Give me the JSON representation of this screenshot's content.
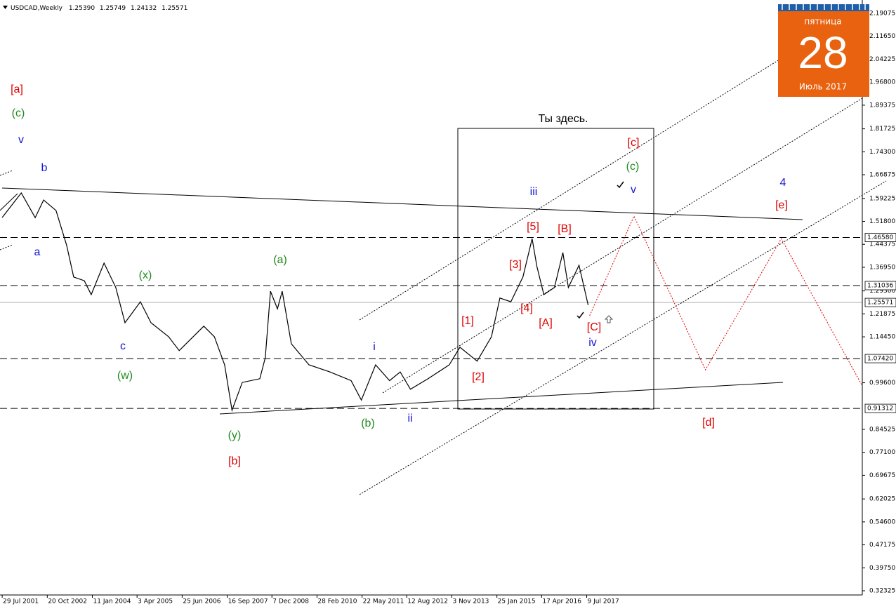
{
  "chart_data": {
    "type": "line",
    "title": "USDCAD,Weekly",
    "header_values": [
      "1.25390",
      "1.25749",
      "1.24132",
      "1.25571"
    ],
    "xlim": [
      2001.51,
      2025.04
    ],
    "ylim": [
      2.2339,
      0.3097
    ],
    "xticks": [
      {
        "value": 2001.57,
        "label": "29 Jul 2001"
      },
      {
        "value": 2002.8,
        "label": "20 Oct 2002"
      },
      {
        "value": 2004.03,
        "label": "11 Jan 2004"
      },
      {
        "value": 2005.25,
        "label": "3 Apr 2005"
      },
      {
        "value": 2006.48,
        "label": "25 Jun 2006"
      },
      {
        "value": 2007.71,
        "label": "16 Sep 2007"
      },
      {
        "value": 2008.93,
        "label": "7 Dec 2008"
      },
      {
        "value": 2010.16,
        "label": "28 Feb 2010"
      },
      {
        "value": 2011.39,
        "label": "22 May 2011"
      },
      {
        "value": 2012.61,
        "label": "12 Aug 2012"
      },
      {
        "value": 2013.84,
        "label": "3 Nov 2013"
      },
      {
        "value": 2015.07,
        "label": "25 Jan 2015"
      },
      {
        "value": 2016.29,
        "label": "17 Apr 2016"
      },
      {
        "value": 2017.52,
        "label": "9 Jul 2017"
      }
    ],
    "yticks": [
      {
        "value": 2.19075,
        "label": "2.19075"
      },
      {
        "value": 2.1165,
        "label": "2.11650"
      },
      {
        "value": 2.04225,
        "label": "2.04225"
      },
      {
        "value": 1.968,
        "label": "1.96800"
      },
      {
        "value": 1.89375,
        "label": "1.89375"
      },
      {
        "value": 1.81725,
        "label": "1.81725"
      },
      {
        "value": 1.743,
        "label": "1.74300"
      },
      {
        "value": 1.66875,
        "label": "1.66875"
      },
      {
        "value": 1.59225,
        "label": "1.59225"
      },
      {
        "value": 1.518,
        "label": "1.51800"
      },
      {
        "value": 1.44375,
        "label": "1.44375"
      },
      {
        "value": 1.3695,
        "label": "1.36950"
      },
      {
        "value": 1.293,
        "label": "1.29300"
      },
      {
        "value": 1.21875,
        "label": "1.21875"
      },
      {
        "value": 1.1445,
        "label": "1.14450"
      },
      {
        "value": 0.996,
        "label": "0.99600"
      },
      {
        "value": 0.84525,
        "label": "0.84525"
      },
      {
        "value": 0.771,
        "label": "0.77100"
      },
      {
        "value": 0.69675,
        "label": "0.69675"
      },
      {
        "value": 0.62025,
        "label": "0.62025"
      },
      {
        "value": 0.546,
        "label": "0.54600"
      },
      {
        "value": 0.47175,
        "label": "0.47175"
      },
      {
        "value": 0.3975,
        "label": "0.39750"
      },
      {
        "value": 0.32325,
        "label": "0.32325"
      }
    ],
    "levels": [
      {
        "value": 1.4658,
        "label": "1.46580",
        "style": "dashed"
      },
      {
        "value": 1.31036,
        "label": "1.31036",
        "style": "dashed"
      },
      {
        "value": 1.25571,
        "label": "1.25571",
        "style": "solid"
      },
      {
        "value": 1.0742,
        "label": "1.07420",
        "style": "dashed"
      },
      {
        "value": 0.91312,
        "label": "0.91312",
        "style": "dashed"
      }
    ],
    "series": [
      {
        "color": "#000000",
        "style": "solid",
        "x": [
          2001.57,
          2002.09,
          2002.47,
          2002.7,
          2003.04,
          2003.33,
          2003.52,
          2003.81,
          2004.0,
          2004.35,
          2004.67,
          2004.92,
          2005.34,
          2005.63,
          2006.11,
          2006.4,
          2007.07,
          2007.36,
          2007.64,
          2007.84,
          2008.12,
          2008.6,
          2008.75,
          2008.89,
          2009.08,
          2009.21,
          2009.46,
          2009.94,
          2010.51,
          2011.09,
          2011.37,
          2011.76,
          2012.14,
          2012.43,
          2012.71,
          2013.19,
          2013.77,
          2014.06,
          2014.53,
          2014.92,
          2015.15,
          2015.45,
          2015.78,
          2016.03,
          2016.16,
          2016.35,
          2016.64,
          2016.87,
          2017.02,
          2017.31,
          2017.56
        ],
        "values": [
          1.5305,
          1.61,
          1.53,
          1.587,
          1.553,
          1.44,
          1.338,
          1.326,
          1.281,
          1.383,
          1.304,
          1.19,
          1.258,
          1.19,
          1.145,
          1.1,
          1.179,
          1.145,
          1.054,
          0.907,
          0.997,
          1.009,
          1.077,
          1.292,
          1.235,
          1.292,
          1.122,
          1.054,
          1.031,
          1.003,
          0.94,
          1.054,
          1.003,
          1.031,
          0.975,
          1.009,
          1.054,
          1.111,
          1.066,
          1.145,
          1.27,
          1.258,
          1.338,
          1.462,
          1.372,
          1.281,
          1.304,
          1.417,
          1.304,
          1.376,
          1.247
        ]
      },
      {
        "color": "#e00000",
        "style": "dotted",
        "x": [
          2017.6,
          2018.81,
          2020.76,
          2022.83,
          2025.04
        ],
        "values": [
          1.2128,
          1.535,
          1.038,
          1.462,
          0.986
        ]
      }
    ],
    "annotations": [
      {
        "text": "[a]",
        "color": "#e00000"
      },
      {
        "text": "(c)",
        "color": "#1e8a1e"
      },
      {
        "text": "v",
        "color": "#1414d4"
      },
      {
        "text": "b",
        "color": "#1414d4"
      },
      {
        "text": "a",
        "color": "#1414d4"
      },
      {
        "text": "(x)",
        "color": "#1e8a1e"
      },
      {
        "text": "(a)",
        "color": "#1e8a1e"
      },
      {
        "text": "c",
        "color": "#1414d4"
      },
      {
        "text": "(w)",
        "color": "#1e8a1e"
      },
      {
        "text": "(y)",
        "color": "#1e8a1e"
      },
      {
        "text": "[b]",
        "color": "#e00000"
      },
      {
        "text": "(b)",
        "color": "#1e8a1e"
      },
      {
        "text": "i",
        "color": "#1414d4"
      },
      {
        "text": "ii",
        "color": "#1414d4"
      },
      {
        "text": "iii",
        "color": "#1414d4"
      },
      {
        "text": "[5]",
        "color": "#e00000"
      },
      {
        "text": "[B]",
        "color": "#e00000"
      },
      {
        "text": "[3]",
        "color": "#e00000"
      },
      {
        "text": "[4]",
        "color": "#e00000"
      },
      {
        "text": "[A]",
        "color": "#e00000"
      },
      {
        "text": "[1]",
        "color": "#e00000"
      },
      {
        "text": "[2]",
        "color": "#e00000"
      },
      {
        "text": "[C]",
        "color": "#e00000"
      },
      {
        "text": "iv",
        "color": "#1414d4"
      },
      {
        "text": "[c]",
        "color": "#e00000"
      },
      {
        "text": "(c)",
        "color": "#1e8a1e"
      },
      {
        "text": "v",
        "color": "#1414d4"
      },
      {
        "text": "4",
        "color": "#1414d4"
      },
      {
        "text": "[e]",
        "color": "#e00000"
      },
      {
        "text": "[d]",
        "color": "#e00000"
      },
      {
        "text": "Ты здесь.",
        "color": "#000000"
      }
    ]
  },
  "calendar": {
    "weekday": "пятница",
    "day": "28",
    "month_year": "Июль 2017"
  }
}
